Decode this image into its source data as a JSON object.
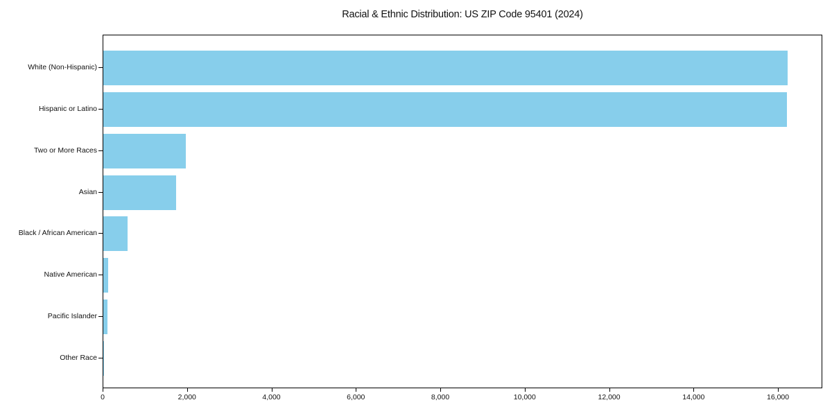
{
  "chart_data": {
    "type": "bar",
    "orientation": "horizontal",
    "title": "Racial & Ethnic Distribution: US ZIP Code 95401 (2024)",
    "categories": [
      "White (Non-Hispanic)",
      "Hispanic or Latino",
      "Two or More Races",
      "Asian",
      "Black / African American",
      "Native American",
      "Pacific Islander",
      "Other Race"
    ],
    "values": [
      16210,
      16190,
      1955,
      1725,
      575,
      110,
      105,
      20
    ],
    "xlabel": "",
    "ylabel": "",
    "xlim": [
      0,
      17050
    ],
    "xticks": [
      0,
      2000,
      4000,
      6000,
      8000,
      10000,
      12000,
      14000,
      16000
    ],
    "xtick_labels": [
      "0",
      "2,000",
      "4,000",
      "6,000",
      "8,000",
      "10,000",
      "12,000",
      "14,000",
      "16,000"
    ],
    "grid": false,
    "legend": null,
    "bar_color": "#87CEEB",
    "axis_color": "#000000",
    "text_color": "#111111",
    "background_color": "#ffffff"
  }
}
